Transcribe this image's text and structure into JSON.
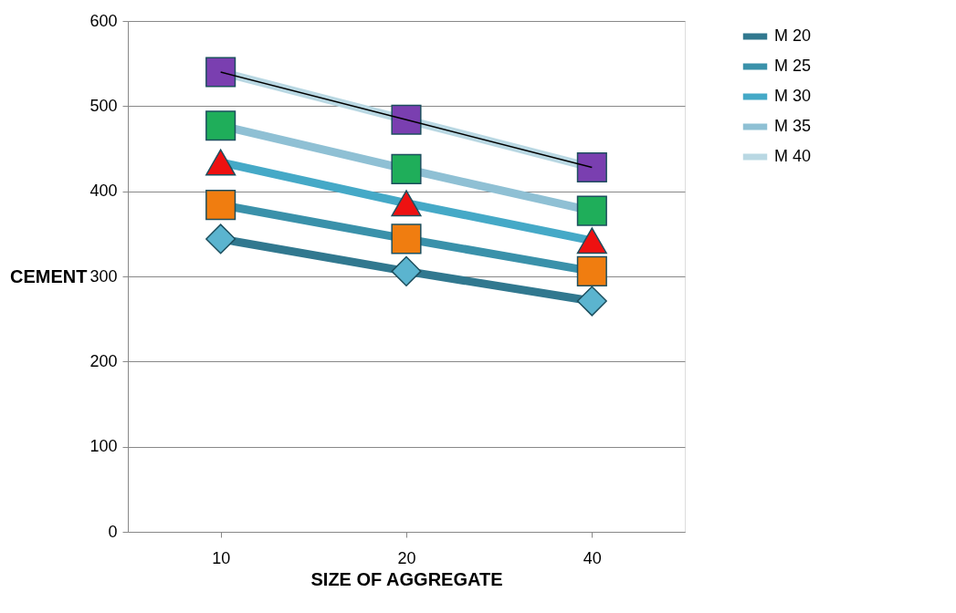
{
  "chart_data": {
    "type": "line",
    "xlabel": "SIZE OF AGGREGATE",
    "ylabel": "CEMENT",
    "categories": [
      "10",
      "20",
      "40"
    ],
    "series": [
      {
        "name": "M 20",
        "color": "#31788f",
        "marker": "diamond",
        "values": [
          344,
          306,
          271
        ]
      },
      {
        "name": "M 25",
        "color": "#3a91aa",
        "marker": "square",
        "values": [
          384,
          344,
          306
        ]
      },
      {
        "name": "M 30",
        "color": "#45a9c7",
        "marker": "triangle",
        "values": [
          434,
          386,
          342
        ]
      },
      {
        "name": "M 35",
        "color": "#8fc0d4",
        "marker": "square",
        "values": [
          477,
          426,
          377
        ]
      },
      {
        "name": "M 40",
        "color": "#b9d8e3",
        "marker": "square",
        "values": [
          540,
          484,
          428
        ]
      },
      {
        "type": "line",
        "color": "#000000",
        "marker": "none",
        "values": [
          540,
          484,
          428
        ]
      }
    ],
    "ylim": [
      0,
      600
    ],
    "yticks": [
      0,
      100,
      200,
      300,
      400,
      500,
      600
    ],
    "grid": "y",
    "legend": "right"
  }
}
